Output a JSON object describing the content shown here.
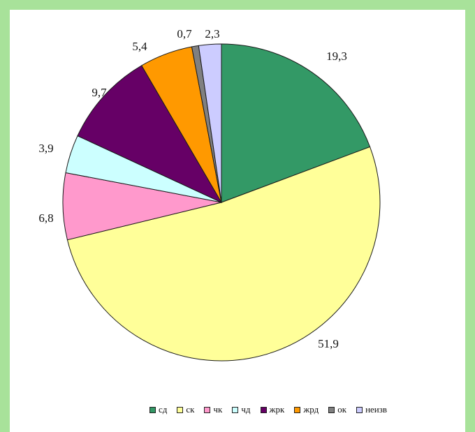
{
  "chart_data": {
    "type": "pie",
    "title": "",
    "start_angle_deg": 0,
    "direction": "clockwise",
    "legend_position": "bottom",
    "slices": [
      {
        "label": "сд",
        "value": 19.3,
        "display": "19,3",
        "color": "#339966"
      },
      {
        "label": "ск",
        "value": 51.9,
        "display": "51,9",
        "color": "#ffff99"
      },
      {
        "label": "чк",
        "value": 6.8,
        "display": "6,8",
        "color": "#ff99cc"
      },
      {
        "label": "чд",
        "value": 3.9,
        "display": "3,9",
        "color": "#ccffff"
      },
      {
        "label": "жрк",
        "value": 9.7,
        "display": "9,7",
        "color": "#660066"
      },
      {
        "label": "жрд",
        "value": 5.4,
        "display": "5,4",
        "color": "#ff9900"
      },
      {
        "label": "ок",
        "value": 0.7,
        "display": "0,7",
        "color": "#808080"
      },
      {
        "label": "неизв",
        "value": 2.3,
        "display": "2,3",
        "color": "#ccccff"
      }
    ]
  }
}
